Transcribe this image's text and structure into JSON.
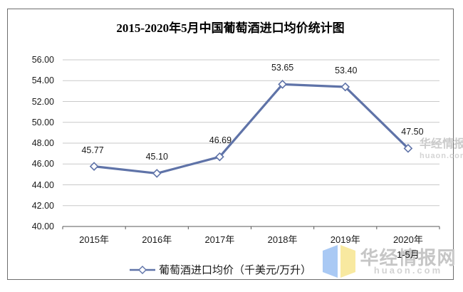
{
  "title": "2015-2020年5月中国葡萄酒进口均价统计图",
  "chart_data": {
    "type": "line",
    "categories": [
      "2015年",
      "2016年",
      "2017年",
      "2018年",
      "2019年",
      "2020年"
    ],
    "last_category_line2": "1-5月",
    "values": [
      45.77,
      45.1,
      46.69,
      53.65,
      53.4,
      47.5
    ],
    "data_labels": [
      "45.77",
      "45.10",
      "46.69",
      "53.65",
      "53.40",
      "47.50"
    ],
    "title": "2015-2020年5月中国葡萄酒进口均价统计图",
    "xlabel": "",
    "ylabel": "",
    "ylim": [
      40,
      56
    ],
    "ytick_step": 2,
    "ytick_labels": [
      "40.00",
      "42.00",
      "44.00",
      "46.00",
      "48.00",
      "50.00",
      "52.00",
      "54.00",
      "56.00"
    ],
    "grid": true,
    "legend_position": "bottom",
    "series": [
      {
        "name": "葡萄酒进口均价（千美元/万升）",
        "values": [
          45.77,
          45.1,
          46.69,
          53.65,
          53.4,
          47.5
        ]
      }
    ],
    "marker": "diamond"
  },
  "legend": {
    "label": "葡萄酒进口均价（千美元/万升）"
  },
  "watermark": {
    "name": "华经情报网",
    "domain": "huaon.com",
    "logo_blue": "#a9c9f4",
    "logo_yellow": "#f8e9a0"
  },
  "colors": {
    "line": "#5f73a8",
    "marker_fill": "#ffffff",
    "grid": "#c9c9c9",
    "axis": "#595959",
    "frame": "#6e6e6e",
    "text": "#1a1a1a"
  }
}
